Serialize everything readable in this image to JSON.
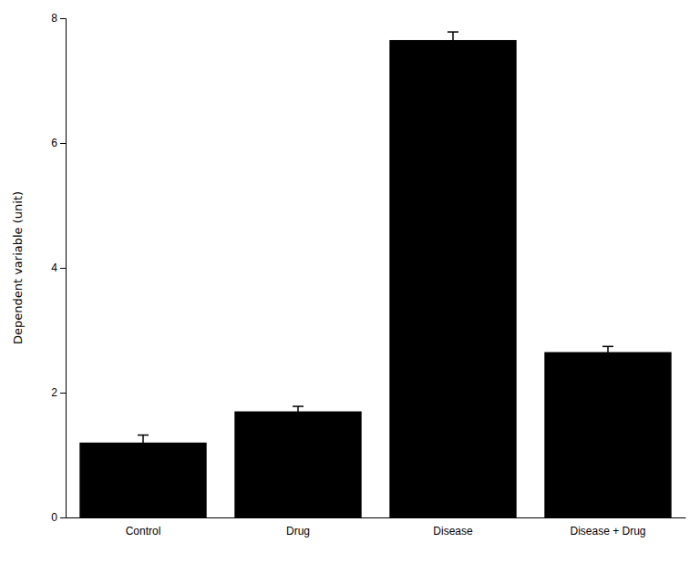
{
  "chart_data": {
    "type": "bar",
    "categories": [
      "Control",
      "Drug",
      "Disease",
      "Disease + Drug"
    ],
    "values": [
      1.2,
      1.7,
      7.65,
      2.65
    ],
    "errors": [
      0.12,
      0.08,
      0.13,
      0.09
    ],
    "color": "#000000",
    "ylabel": "Dependent variable (unit)",
    "ylim": [
      0,
      8
    ],
    "yticks": [
      0,
      2,
      4,
      6,
      8
    ],
    "grid": false
  }
}
